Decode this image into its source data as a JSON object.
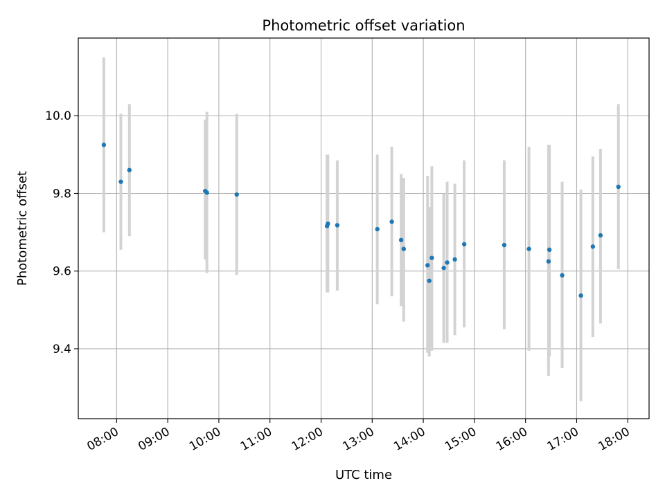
{
  "chart_data": {
    "type": "scatter",
    "title": "Photometric offset variation",
    "xlabel": "UTC time",
    "ylabel": "Photometric offset",
    "x_tick_labels": [
      "08:00",
      "09:00",
      "10:00",
      "11:00",
      "12:00",
      "13:00",
      "14:00",
      "15:00",
      "16:00",
      "17:00",
      "18:00"
    ],
    "x_tick_times": [
      "08:00",
      "09:00",
      "10:00",
      "11:00",
      "12:00",
      "13:00",
      "14:00",
      "15:00",
      "16:00",
      "17:00",
      "18:00"
    ],
    "y_tick_labels": [
      "9.4",
      "9.6",
      "9.8",
      "10.0"
    ],
    "y_tick_values": [
      9.4,
      9.6,
      9.8,
      10.0
    ],
    "xlim": [
      "07:15",
      "18:25"
    ],
    "ylim": [
      9.22,
      10.2
    ],
    "grid": true,
    "colors": {
      "point": "#1f77b4",
      "errorbar": "#d3d3d3",
      "grid": "#b0b0b0"
    },
    "points": [
      {
        "time": "07:45",
        "y": 9.925,
        "ylow": 9.7,
        "yhigh": 10.15
      },
      {
        "time": "08:05",
        "y": 9.83,
        "ylow": 9.655,
        "yhigh": 10.005
      },
      {
        "time": "08:15",
        "y": 9.86,
        "ylow": 9.69,
        "yhigh": 10.03
      },
      {
        "time": "09:44",
        "y": 9.806,
        "ylow": 9.63,
        "yhigh": 9.99
      },
      {
        "time": "09:46",
        "y": 9.802,
        "ylow": 9.595,
        "yhigh": 10.01
      },
      {
        "time": "10:21",
        "y": 9.797,
        "ylow": 9.59,
        "yhigh": 10.005
      },
      {
        "time": "12:07",
        "y": 9.716,
        "ylow": 9.545,
        "yhigh": 9.9
      },
      {
        "time": "12:08",
        "y": 9.722,
        "ylow": 9.545,
        "yhigh": 9.9
      },
      {
        "time": "12:19",
        "y": 9.718,
        "ylow": 9.55,
        "yhigh": 9.885
      },
      {
        "time": "13:06",
        "y": 9.708,
        "ylow": 9.515,
        "yhigh": 9.9
      },
      {
        "time": "13:23",
        "y": 9.727,
        "ylow": 9.535,
        "yhigh": 9.92
      },
      {
        "time": "13:34",
        "y": 9.68,
        "ylow": 9.51,
        "yhigh": 9.85
      },
      {
        "time": "13:37",
        "y": 9.657,
        "ylow": 9.47,
        "yhigh": 9.84
      },
      {
        "time": "14:05",
        "y": 9.615,
        "ylow": 9.39,
        "yhigh": 9.845
      },
      {
        "time": "14:07",
        "y": 9.575,
        "ylow": 9.38,
        "yhigh": 9.765
      },
      {
        "time": "14:10",
        "y": 9.634,
        "ylow": 9.395,
        "yhigh": 9.87
      },
      {
        "time": "14:24",
        "y": 9.608,
        "ylow": 9.415,
        "yhigh": 9.8
      },
      {
        "time": "14:28",
        "y": 9.622,
        "ylow": 9.415,
        "yhigh": 9.83
      },
      {
        "time": "14:37",
        "y": 9.63,
        "ylow": 9.435,
        "yhigh": 9.825
      },
      {
        "time": "14:48",
        "y": 9.669,
        "ylow": 9.455,
        "yhigh": 9.885
      },
      {
        "time": "15:35",
        "y": 9.667,
        "ylow": 9.45,
        "yhigh": 9.885
      },
      {
        "time": "16:04",
        "y": 9.657,
        "ylow": 9.395,
        "yhigh": 9.92
      },
      {
        "time": "16:27",
        "y": 9.625,
        "ylow": 9.33,
        "yhigh": 9.925
      },
      {
        "time": "16:28",
        "y": 9.655,
        "ylow": 9.38,
        "yhigh": 9.925
      },
      {
        "time": "16:43",
        "y": 9.589,
        "ylow": 9.35,
        "yhigh": 9.83
      },
      {
        "time": "17:05",
        "y": 9.537,
        "ylow": 9.265,
        "yhigh": 9.81
      },
      {
        "time": "17:19",
        "y": 9.663,
        "ylow": 9.43,
        "yhigh": 9.895
      },
      {
        "time": "17:28",
        "y": 9.692,
        "ylow": 9.465,
        "yhigh": 9.915
      },
      {
        "time": "17:49",
        "y": 9.817,
        "ylow": 9.605,
        "yhigh": 10.03
      }
    ]
  }
}
